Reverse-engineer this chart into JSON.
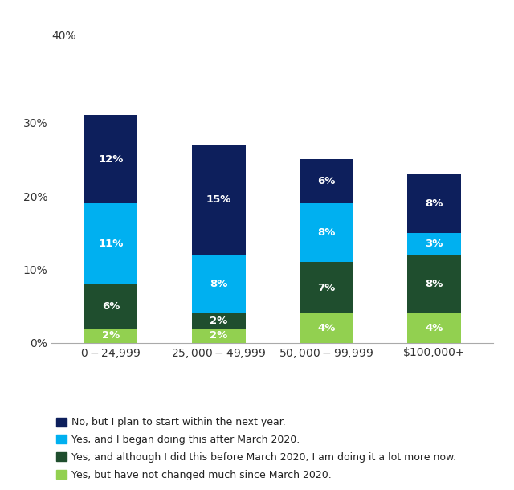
{
  "categories": [
    "$0-$24,999",
    "$25,000-$49,999",
    "$50,000-$99,999",
    "$100,000+"
  ],
  "series": {
    "No, but I plan to start within the next year.": [
      12,
      15,
      6,
      8
    ],
    "Yes, and I began doing this after March 2020.": [
      11,
      8,
      8,
      3
    ],
    "Yes, and although I did this before March 2020, I am doing it a lot more now.": [
      6,
      2,
      7,
      8
    ],
    "Yes, but have not changed much since March 2020.": [
      2,
      2,
      4,
      4
    ]
  },
  "colors": {
    "No, but I plan to start within the next year.": "#0d1f5c",
    "Yes, and I began doing this after March 2020.": "#00b0f0",
    "Yes, and although I did this before March 2020, I am doing it a lot more now.": "#1f4e2e",
    "Yes, but have not changed much since March 2020.": "#92d050"
  },
  "series_order": [
    "Yes, but have not changed much since March 2020.",
    "Yes, and although I did this before March 2020, I am doing it a lot more now.",
    "Yes, and I began doing this after March 2020.",
    "No, but I plan to start within the next year."
  ],
  "legend_order": [
    "No, but I plan to start within the next year.",
    "Yes, and I began doing this after March 2020.",
    "Yes, and although I did this before March 2020, I am doing it a lot more now.",
    "Yes, but have not changed much since March 2020."
  ],
  "ylim": [
    0,
    40
  ],
  "yticks": [
    0,
    10,
    20,
    30,
    40
  ],
  "ytick_labels": [
    "0%",
    "10%",
    "20%",
    "30%",
    "40%"
  ],
  "bar_width": 0.5,
  "background_color": "#ffffff",
  "bar_text_color": "#ffffff",
  "legend_fontsize": 9,
  "tick_fontsize": 10,
  "label_fontsize": 9.5
}
